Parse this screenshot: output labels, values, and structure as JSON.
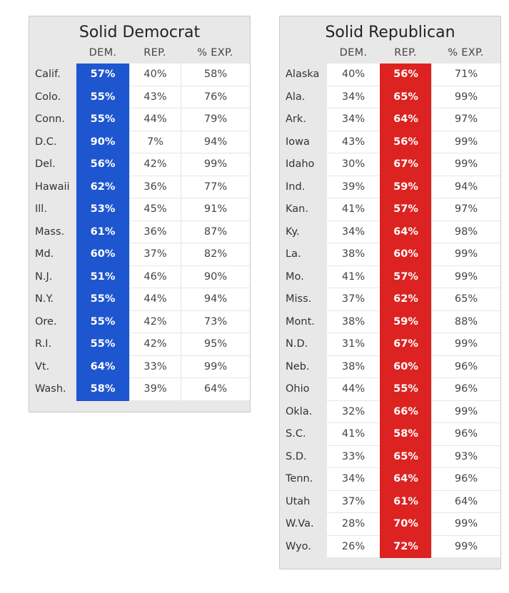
{
  "colors": {
    "dem": "#1e56cf",
    "rep": "#dd2222"
  },
  "dem_table": {
    "title": "Solid Democrat",
    "headers": [
      "DEM.",
      "REP.",
      "% EXP."
    ],
    "rows": [
      {
        "state": "Calif.",
        "dem": "57%",
        "rep": "40%",
        "exp": "58%"
      },
      {
        "state": "Colo.",
        "dem": "55%",
        "rep": "43%",
        "exp": "76%"
      },
      {
        "state": "Conn.",
        "dem": "55%",
        "rep": "44%",
        "exp": "79%"
      },
      {
        "state": "D.C.",
        "dem": "90%",
        "rep": "7%",
        "exp": "94%"
      },
      {
        "state": "Del.",
        "dem": "56%",
        "rep": "42%",
        "exp": "99%"
      },
      {
        "state": "Hawaii",
        "dem": "62%",
        "rep": "36%",
        "exp": "77%"
      },
      {
        "state": "Ill.",
        "dem": "53%",
        "rep": "45%",
        "exp": "91%"
      },
      {
        "state": "Mass.",
        "dem": "61%",
        "rep": "36%",
        "exp": "87%"
      },
      {
        "state": "Md.",
        "dem": "60%",
        "rep": "37%",
        "exp": "82%"
      },
      {
        "state": "N.J.",
        "dem": "51%",
        "rep": "46%",
        "exp": "90%"
      },
      {
        "state": "N.Y.",
        "dem": "55%",
        "rep": "44%",
        "exp": "94%"
      },
      {
        "state": "Ore.",
        "dem": "55%",
        "rep": "42%",
        "exp": "73%"
      },
      {
        "state": "R.I.",
        "dem": "55%",
        "rep": "42%",
        "exp": "95%"
      },
      {
        "state": "Vt.",
        "dem": "64%",
        "rep": "33%",
        "exp": "99%"
      },
      {
        "state": "Wash.",
        "dem": "58%",
        "rep": "39%",
        "exp": "64%"
      }
    ]
  },
  "rep_table": {
    "title": "Solid Republican",
    "headers": [
      "DEM.",
      "REP.",
      "% EXP."
    ],
    "rows": [
      {
        "state": "Alaska",
        "dem": "40%",
        "rep": "56%",
        "exp": "71%"
      },
      {
        "state": "Ala.",
        "dem": "34%",
        "rep": "65%",
        "exp": "99%"
      },
      {
        "state": "Ark.",
        "dem": "34%",
        "rep": "64%",
        "exp": "97%"
      },
      {
        "state": "Iowa",
        "dem": "43%",
        "rep": "56%",
        "exp": "99%"
      },
      {
        "state": "Idaho",
        "dem": "30%",
        "rep": "67%",
        "exp": "99%"
      },
      {
        "state": "Ind.",
        "dem": "39%",
        "rep": "59%",
        "exp": "94%"
      },
      {
        "state": "Kan.",
        "dem": "41%",
        "rep": "57%",
        "exp": "97%"
      },
      {
        "state": "Ky.",
        "dem": "34%",
        "rep": "64%",
        "exp": "98%"
      },
      {
        "state": "La.",
        "dem": "38%",
        "rep": "60%",
        "exp": "99%"
      },
      {
        "state": "Mo.",
        "dem": "41%",
        "rep": "57%",
        "exp": "99%"
      },
      {
        "state": "Miss.",
        "dem": "37%",
        "rep": "62%",
        "exp": "65%"
      },
      {
        "state": "Mont.",
        "dem": "38%",
        "rep": "59%",
        "exp": "88%"
      },
      {
        "state": "N.D.",
        "dem": "31%",
        "rep": "67%",
        "exp": "99%"
      },
      {
        "state": "Neb.",
        "dem": "38%",
        "rep": "60%",
        "exp": "96%"
      },
      {
        "state": "Ohio",
        "dem": "44%",
        "rep": "55%",
        "exp": "96%"
      },
      {
        "state": "Okla.",
        "dem": "32%",
        "rep": "66%",
        "exp": "99%"
      },
      {
        "state": "S.C.",
        "dem": "41%",
        "rep": "58%",
        "exp": "96%"
      },
      {
        "state": "S.D.",
        "dem": "33%",
        "rep": "65%",
        "exp": "93%"
      },
      {
        "state": "Tenn.",
        "dem": "34%",
        "rep": "64%",
        "exp": "96%"
      },
      {
        "state": "Utah",
        "dem": "37%",
        "rep": "61%",
        "exp": "64%"
      },
      {
        "state": "W.Va.",
        "dem": "28%",
        "rep": "70%",
        "exp": "99%"
      },
      {
        "state": "Wyo.",
        "dem": "26%",
        "rep": "72%",
        "exp": "99%"
      }
    ]
  }
}
